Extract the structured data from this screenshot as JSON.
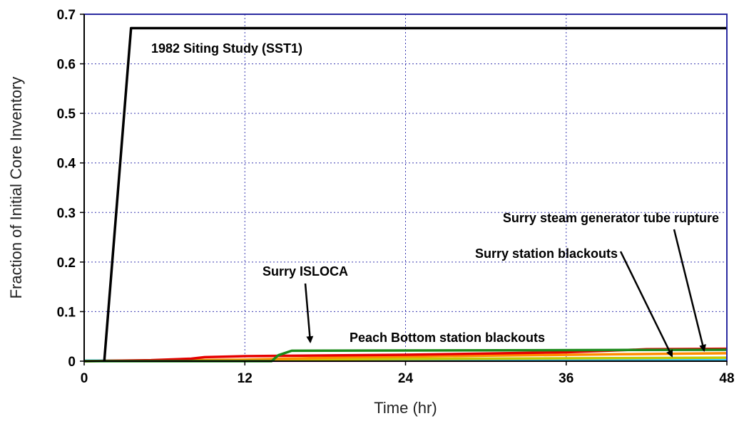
{
  "chart_data": {
    "type": "line",
    "xlabel": "Time (hr)",
    "ylabel": "Fraction of Initial Core Inventory",
    "xlim": [
      0,
      48
    ],
    "ylim": [
      0,
      0.7
    ],
    "xticks": [
      "0",
      "12",
      "24",
      "36",
      "48"
    ],
    "yticks": [
      "0",
      "0.1",
      "0.2",
      "0.3",
      "0.4",
      "0.5",
      "0.6",
      "0.7"
    ],
    "grid": true,
    "series": [
      {
        "name": "1982 Siting Study (SST1)",
        "color": "#000000",
        "x": [
          1.5,
          3.5,
          48
        ],
        "y": [
          0,
          0.672,
          0.672
        ]
      },
      {
        "name": "Surry ISLOCA",
        "color": "#1a8a1a",
        "x": [
          0,
          14,
          14.5,
          15.5,
          48
        ],
        "y": [
          0,
          0,
          0.012,
          0.021,
          0.023
        ]
      },
      {
        "name": "Peach Bottom station blackouts",
        "color": "#e60000",
        "x": [
          0,
          5,
          8,
          9,
          12,
          24,
          36,
          42,
          48
        ],
        "y": [
          0,
          0.002,
          0.005,
          0.008,
          0.01,
          0.013,
          0.018,
          0.024,
          0.025
        ]
      },
      {
        "name": "Surry station blackouts",
        "color": "#ff8c00",
        "x": [
          0,
          12,
          20,
          30,
          40,
          48
        ],
        "y": [
          0,
          0.003,
          0.008,
          0.011,
          0.014,
          0.016
        ]
      },
      {
        "name": "Surry steam generator tube rupture",
        "color": "#c8c800",
        "x": [
          0,
          20,
          48
        ],
        "y": [
          0,
          0.004,
          0.007
        ]
      },
      {
        "name": "",
        "color": "#33ccff",
        "x": [
          0,
          48
        ],
        "y": [
          0.001,
          0.002
        ]
      },
      {
        "name": "",
        "color": "#ff99cc",
        "x": [
          0,
          48
        ],
        "y": [
          0.0005,
          0.001
        ]
      }
    ],
    "annotations": [
      {
        "id": "sst1",
        "text": "1982 Siting Study (SST1)"
      },
      {
        "id": "sgtr",
        "text": "Surry steam generator tube rupture"
      },
      {
        "id": "ssbo",
        "text": "Surry station blackouts"
      },
      {
        "id": "isloca",
        "text": "Surry ISLOCA"
      },
      {
        "id": "pbsbo",
        "text": "Peach Bottom station blackouts"
      }
    ]
  }
}
